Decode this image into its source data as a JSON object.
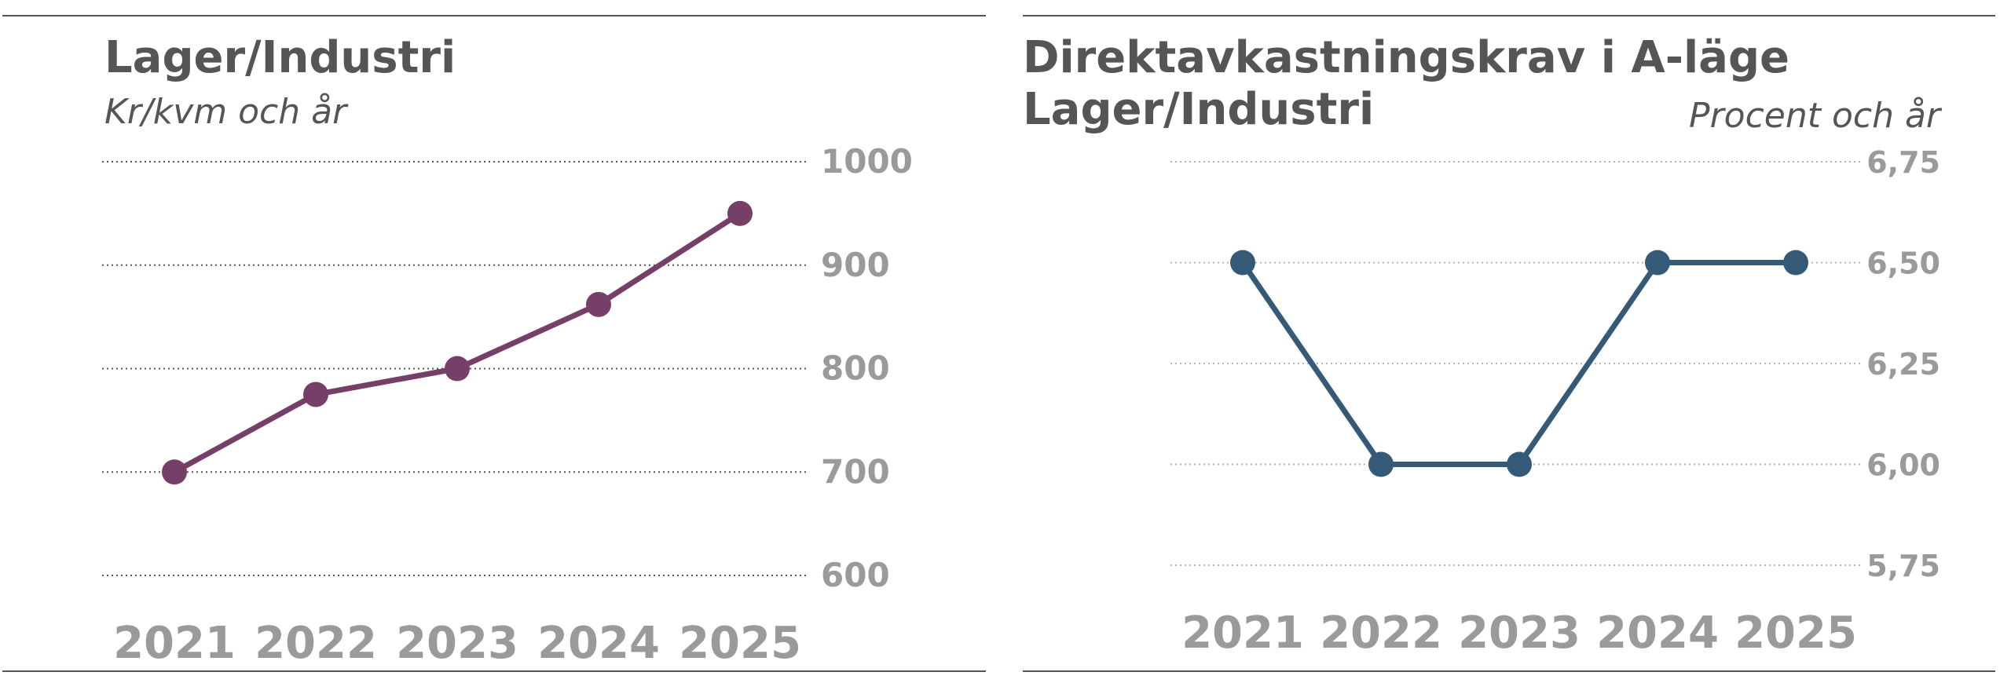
{
  "chart_data": [
    {
      "type": "line",
      "title": "Lager/Industri",
      "subtitle": "Kr/kvm och år",
      "categories": [
        "2021",
        "2022",
        "2023",
        "2024",
        "2025"
      ],
      "values": [
        700,
        775,
        800,
        862,
        950
      ],
      "y_ticks": [
        "1000",
        "900",
        "800",
        "700",
        "600"
      ],
      "ylim": [
        600,
        1000
      ],
      "grid": true,
      "y_axis_side": "right",
      "color": "#753f68"
    },
    {
      "type": "line",
      "title_lines": [
        "Direktavkastningskrav i A-läge",
        "Lager/Industri"
      ],
      "subtitle": "Procent och år",
      "categories": [
        "2021",
        "2022",
        "2023",
        "2024",
        "2025"
      ],
      "values": [
        6.5,
        6.0,
        6.0,
        6.5,
        6.5
      ],
      "y_ticks": [
        "6,75",
        "6,50",
        "6,25",
        "6,00",
        "5,75"
      ],
      "ylim": [
        5.75,
        6.75
      ],
      "grid": true,
      "y_axis_side": "right",
      "color": "#345a78"
    }
  ]
}
